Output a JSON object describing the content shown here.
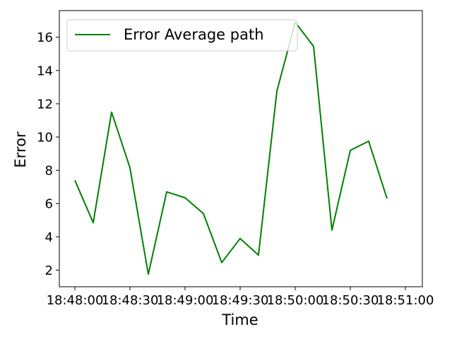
{
  "chart_data": {
    "type": "line",
    "title": "",
    "xlabel": "Time",
    "ylabel": "Error",
    "x": [
      "18:48:00",
      "18:48:10",
      "18:48:20",
      "18:48:30",
      "18:48:40",
      "18:48:50",
      "18:49:00",
      "18:49:10",
      "18:49:20",
      "18:49:30",
      "18:49:40",
      "18:49:50",
      "18:50:00",
      "18:50:10",
      "18:50:20",
      "18:50:30",
      "18:50:40",
      "18:50:50",
      "18:51:00"
    ],
    "x_ticks": [
      "18:48:00",
      "18:48:30",
      "18:49:00",
      "18:49:30",
      "18:50:00",
      "18:50:30",
      "18:51:00"
    ],
    "series": [
      {
        "name": "Error Average path",
        "color": "#008000",
        "values": [
          7.4,
          4.85,
          11.5,
          8.15,
          1.75,
          6.7,
          6.35,
          5.4,
          2.45,
          3.9,
          2.9,
          12.75,
          16.9,
          15.45,
          4.4,
          9.2,
          9.75,
          6.3,
          null
        ]
      }
    ],
    "ylim": [
      1.0,
      17.6
    ],
    "y_ticks": [
      2,
      4,
      6,
      8,
      10,
      12,
      14,
      16
    ],
    "grid": false,
    "legend": "upper-left"
  }
}
